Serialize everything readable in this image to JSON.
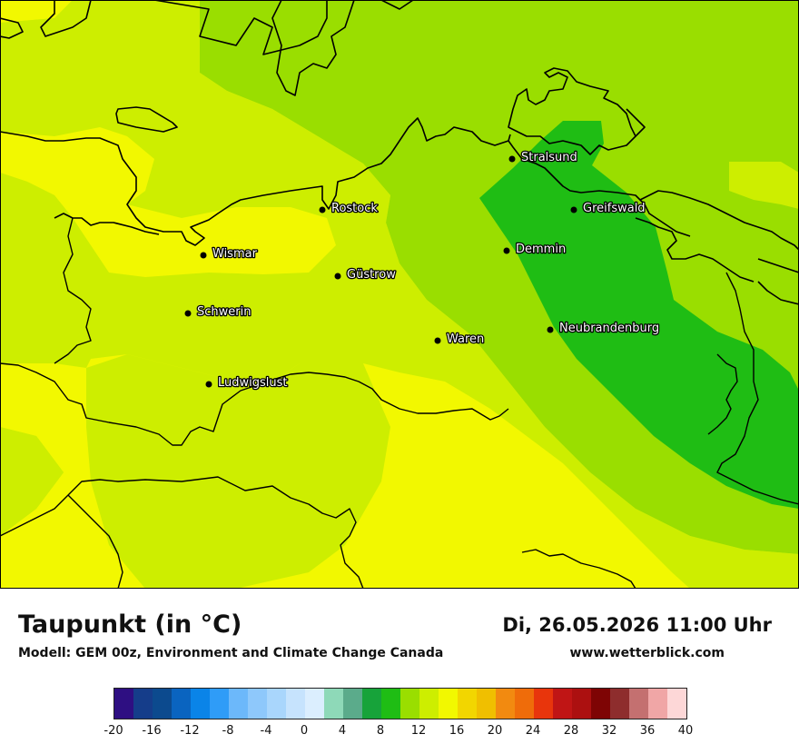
{
  "title": "Taupunkt (in °C)",
  "model_line": "Modell: GEM 00z, Environment and Climate Change Canada",
  "datetime": "Di, 26.05.2026 11:00 Uhr",
  "website": "www.wetterblick.com",
  "cities": [
    {
      "name": "Stralsund"
    },
    {
      "name": "Greifswald"
    },
    {
      "name": "Rostock"
    },
    {
      "name": "Demmin"
    },
    {
      "name": "Wismar"
    },
    {
      "name": "Güstrow"
    },
    {
      "name": "Schwerin"
    },
    {
      "name": "Neubrandenburg"
    },
    {
      "name": "Waren"
    },
    {
      "name": "Ludwigslust"
    }
  ],
  "legend": {
    "colors": [
      "#2e0f82",
      "#153d8a",
      "#0c4a8e",
      "#0a64c0",
      "#0a84e8",
      "#2f9cf7",
      "#6cb8fa",
      "#8ec8fb",
      "#a9d6fc",
      "#c6e3fd",
      "#dbeefe",
      "#8ed9b8",
      "#5bab8b",
      "#17a33a",
      "#1fbd14",
      "#9ade00",
      "#cdee00",
      "#f2f800",
      "#f2d600",
      "#f0bf00",
      "#f28a10",
      "#ef6c0a",
      "#e8350c",
      "#c01515",
      "#ac1010",
      "#7e0404",
      "#8e2d2d",
      "#c47070",
      "#f0a6a6",
      "#fdd7d7"
    ],
    "tick_labels": [
      "-20",
      "-16",
      "-12",
      "-8",
      "-4",
      "0",
      "4",
      "8",
      "12",
      "16",
      "20",
      "24",
      "28",
      "32",
      "36",
      "40"
    ]
  }
}
